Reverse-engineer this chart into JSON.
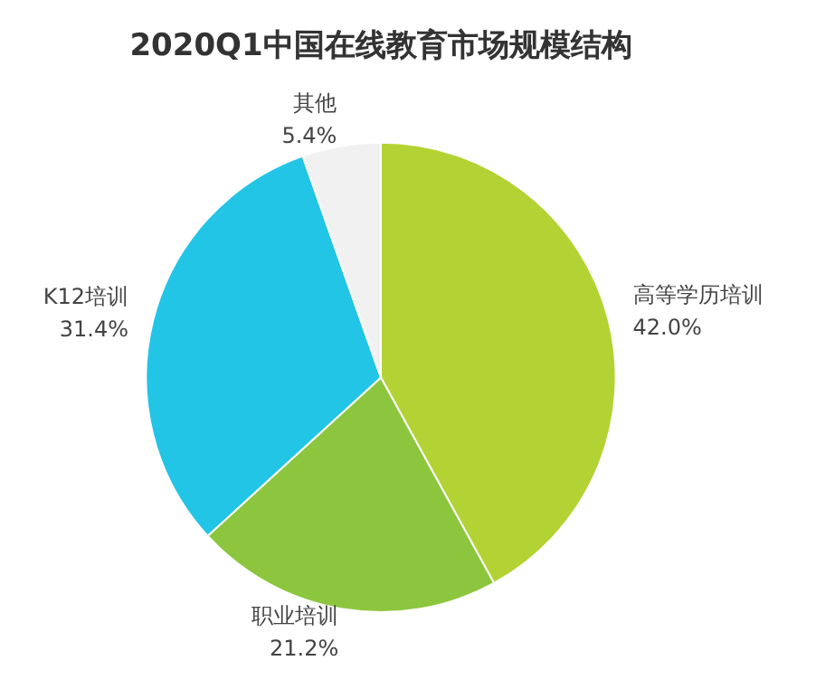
{
  "chart_data": {
    "type": "pie",
    "title": "2020Q1中国在线教育市场规模结构",
    "categories": [
      "高等学历培训",
      "职业培训",
      "K12培训",
      "其他"
    ],
    "values": [
      42.0,
      21.2,
      31.4,
      5.4
    ],
    "value_labels": [
      "42.0%",
      "21.2%",
      "31.4%",
      "5.4%"
    ],
    "colors": [
      "#b3d335",
      "#8cc63e",
      "#22c5e6",
      "#f1f1f1"
    ],
    "legend": false
  }
}
